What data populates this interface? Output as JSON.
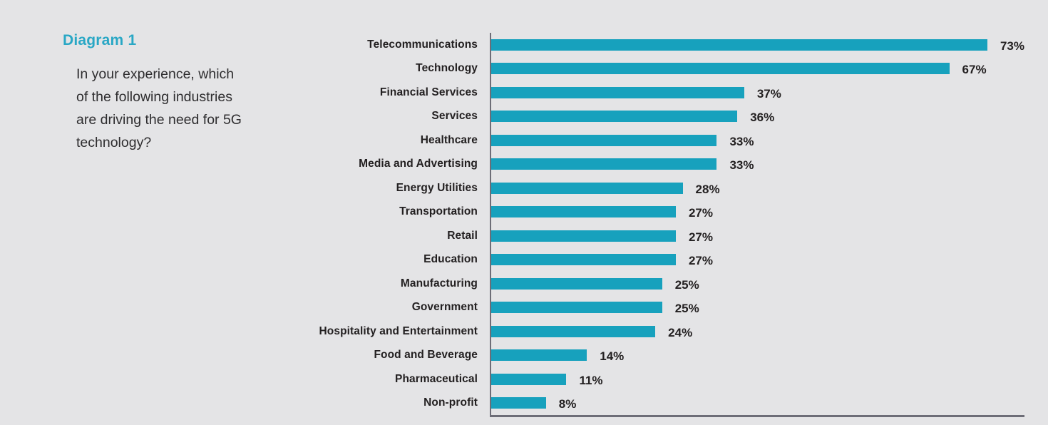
{
  "page": {
    "background": "#e4e4e6"
  },
  "intro": {
    "title": "Diagram 1",
    "title_color": "#29a7c5",
    "question": "In your experience, which\nof the following industries\nare driving the need for 5G\ntechnology?"
  },
  "chart_data": {
    "type": "bar",
    "orientation": "horizontal",
    "title": "Diagram 1",
    "subtitle": "In your experience, which of the following industries are driving the need for 5G technology?",
    "categories": [
      "Telecommunications",
      "Technology",
      "Financial Services",
      "Services",
      "Healthcare",
      "Media and Advertising",
      "Energy Utilities",
      "Transportation",
      "Retail",
      "Education",
      "Manufacturing",
      "Government",
      "Hospitality and Entertainment",
      "Food and Beverage",
      "Pharmaceutical",
      "Non-profit"
    ],
    "values": [
      73,
      67,
      37,
      36,
      33,
      33,
      28,
      27,
      27,
      27,
      25,
      25,
      24,
      14,
      11,
      8
    ],
    "value_suffix": "%",
    "value_labels_position": "end-of-bar",
    "xlabel": "",
    "ylabel": "",
    "xlim": [
      0,
      78
    ],
    "grid": false,
    "legend": "none",
    "bar_color": "#17a1bd",
    "axis_color": "#6d6d77",
    "label_color": "#232021"
  }
}
